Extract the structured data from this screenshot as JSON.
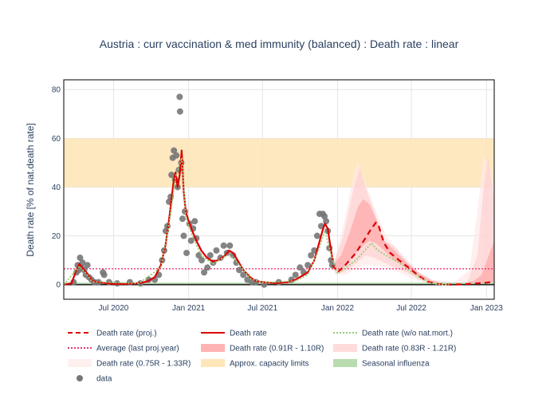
{
  "chart_data": {
    "type": "line",
    "title": "Austria : curr vaccination & med immunity (balanced) : Death rate : linear",
    "xlabel": "",
    "ylabel": "Death rate [% of nat.death rate]",
    "xlim": [
      "2020-03-01",
      "2023-01-20"
    ],
    "ylim": [
      -6,
      84
    ],
    "x_ticks": [
      {
        "date": "2020-07-01",
        "label": "Jul 2020"
      },
      {
        "date": "2021-01-01",
        "label": "Jan 2021"
      },
      {
        "date": "2021-07-01",
        "label": "Jul 2021"
      },
      {
        "date": "2022-01-01",
        "label": "Jan 2022"
      },
      {
        "date": "2022-07-01",
        "label": "Jul 2022"
      },
      {
        "date": "2023-01-01",
        "label": "Jan 2023"
      }
    ],
    "y_ticks": [
      0,
      20,
      40,
      60,
      80
    ],
    "grid": true,
    "legend_position": "bottom",
    "capacity_band": [
      40,
      60
    ],
    "seasonal_influenza": [
      0,
      0.5
    ],
    "average_last_proj_year": 6.5,
    "series": [
      {
        "name": "Death rate",
        "color": "#dd0000",
        "style": "solid",
        "points": [
          [
            "2020-03-01",
            0
          ],
          [
            "2020-03-20",
            0.5
          ],
          [
            "2020-04-01",
            6
          ],
          [
            "2020-04-08",
            8.5
          ],
          [
            "2020-04-15",
            7
          ],
          [
            "2020-04-25",
            5
          ],
          [
            "2020-05-10",
            1.5
          ],
          [
            "2020-06-01",
            0.8
          ],
          [
            "2020-07-01",
            0.3
          ],
          [
            "2020-08-01",
            0.3
          ],
          [
            "2020-09-01",
            0.6
          ],
          [
            "2020-09-20",
            1.2
          ],
          [
            "2020-10-10",
            3
          ],
          [
            "2020-10-25",
            8
          ],
          [
            "2020-11-05",
            16
          ],
          [
            "2020-11-15",
            28
          ],
          [
            "2020-11-25",
            42
          ],
          [
            "2020-11-30",
            46
          ],
          [
            "2020-12-05",
            40
          ],
          [
            "2020-12-10",
            45
          ],
          [
            "2020-12-15",
            55
          ],
          [
            "2020-12-20",
            38
          ],
          [
            "2020-12-25",
            30
          ],
          [
            "2021-01-01",
            26
          ],
          [
            "2021-01-10",
            22
          ],
          [
            "2021-01-20",
            18
          ],
          [
            "2021-02-01",
            14
          ],
          [
            "2021-02-15",
            11
          ],
          [
            "2021-03-01",
            9.5
          ],
          [
            "2021-03-15",
            10
          ],
          [
            "2021-04-01",
            12
          ],
          [
            "2021-04-10",
            14
          ],
          [
            "2021-04-20",
            13
          ],
          [
            "2021-05-01",
            10
          ],
          [
            "2021-05-15",
            6
          ],
          [
            "2021-06-01",
            3
          ],
          [
            "2021-06-15",
            1.5
          ],
          [
            "2021-07-01",
            1
          ],
          [
            "2021-08-01",
            0.6
          ],
          [
            "2021-09-01",
            1
          ],
          [
            "2021-09-20",
            2
          ],
          [
            "2021-10-05",
            3.5
          ],
          [
            "2021-10-20",
            5
          ],
          [
            "2021-11-05",
            10
          ],
          [
            "2021-11-15",
            16
          ],
          [
            "2021-11-25",
            22
          ],
          [
            "2021-12-01",
            25
          ],
          [
            "2021-12-08",
            23
          ],
          [
            "2021-12-15",
            15
          ],
          [
            "2021-12-20",
            10
          ]
        ]
      },
      {
        "name": "Death rate (proj.)",
        "color": "#dd0000",
        "style": "dash",
        "points": [
          [
            "2021-12-20",
            8
          ],
          [
            "2022-01-01",
            5
          ],
          [
            "2022-01-20",
            8
          ],
          [
            "2022-02-15",
            13
          ],
          [
            "2022-03-10",
            19
          ],
          [
            "2022-03-25",
            23
          ],
          [
            "2022-04-05",
            25.5
          ],
          [
            "2022-04-12",
            24
          ],
          [
            "2022-04-25",
            17
          ],
          [
            "2022-05-10",
            13
          ],
          [
            "2022-06-01",
            10
          ],
          [
            "2022-07-01",
            6
          ],
          [
            "2022-07-20",
            3.5
          ],
          [
            "2022-08-10",
            1.2
          ],
          [
            "2022-09-01",
            0.3
          ],
          [
            "2022-10-01",
            0
          ],
          [
            "2022-11-01",
            0.1
          ],
          [
            "2022-12-01",
            0.4
          ],
          [
            "2023-01-01",
            0.8
          ],
          [
            "2023-01-20",
            1.2
          ]
        ]
      },
      {
        "name": "Death rate (w/o nat.mort.)",
        "color": "#99cc77",
        "style": "dot",
        "points": [
          [
            "2020-03-01",
            0
          ],
          [
            "2020-04-08",
            7.5
          ],
          [
            "2020-04-25",
            4.5
          ],
          [
            "2020-05-10",
            1.2
          ],
          [
            "2020-09-01",
            0.5
          ],
          [
            "2020-10-25",
            7
          ],
          [
            "2020-11-15",
            26
          ],
          [
            "2020-11-30",
            44
          ],
          [
            "2020-12-15",
            52
          ],
          [
            "2020-12-25",
            28
          ],
          [
            "2021-01-10",
            20
          ],
          [
            "2021-02-01",
            12
          ],
          [
            "2021-03-01",
            8.5
          ],
          [
            "2021-04-10",
            12.5
          ],
          [
            "2021-05-01",
            9
          ],
          [
            "2021-06-01",
            2.5
          ],
          [
            "2021-07-01",
            0.8
          ],
          [
            "2021-09-20",
            1.5
          ],
          [
            "2021-10-20",
            4
          ],
          [
            "2021-11-15",
            14
          ],
          [
            "2021-12-01",
            22
          ],
          [
            "2021-12-15",
            13
          ],
          [
            "2022-01-01",
            4.5
          ],
          [
            "2022-02-15",
            10
          ],
          [
            "2022-03-25",
            17
          ],
          [
            "2022-04-10",
            14
          ],
          [
            "2022-05-10",
            11
          ],
          [
            "2022-06-01",
            9
          ],
          [
            "2022-07-01",
            5
          ],
          [
            "2022-08-10",
            1
          ],
          [
            "2022-09-01",
            0.2
          ],
          [
            "2022-10-01",
            0
          ]
        ]
      }
    ],
    "bands": [
      {
        "name": "Death rate (0.91R - 1.10R)",
        "color": "#ff9999",
        "opacity": 0.55,
        "points": [
          [
            "2021-12-25",
            6,
            9
          ],
          [
            "2022-01-10",
            6,
            12
          ],
          [
            "2022-02-01",
            10,
            22
          ],
          [
            "2022-02-20",
            14,
            32
          ],
          [
            "2022-03-05",
            16,
            35
          ],
          [
            "2022-03-20",
            18,
            33
          ],
          [
            "2022-04-05",
            17,
            27
          ],
          [
            "2022-04-25",
            14,
            18
          ],
          [
            "2022-05-20",
            10,
            14
          ],
          [
            "2022-06-20",
            7,
            9
          ],
          [
            "2022-07-20",
            3,
            4.5
          ],
          [
            "2022-08-20",
            0.5,
            1.5
          ],
          [
            "2022-09-20",
            0,
            0.5
          ],
          [
            "2022-11-01",
            0,
            0.3
          ],
          [
            "2022-12-01",
            0.2,
            1.5
          ],
          [
            "2022-12-20",
            0.5,
            4
          ],
          [
            "2023-01-20",
            1,
            18
          ]
        ]
      },
      {
        "name": "Death rate (0.83R - 1.21R)",
        "color": "#ffcccc",
        "opacity": 0.6,
        "points": [
          [
            "2021-12-25",
            5,
            10
          ],
          [
            "2022-01-15",
            5,
            20
          ],
          [
            "2022-02-10",
            8,
            40
          ],
          [
            "2022-02-25",
            10,
            48
          ],
          [
            "2022-03-10",
            12,
            40
          ],
          [
            "2022-04-01",
            11,
            30
          ],
          [
            "2022-04-25",
            9,
            18
          ],
          [
            "2022-05-20",
            7,
            16
          ],
          [
            "2022-06-20",
            5,
            10
          ],
          [
            "2022-07-20",
            2,
            5
          ],
          [
            "2022-08-20",
            0.3,
            2
          ],
          [
            "2022-10-01",
            0,
            0.5
          ],
          [
            "2022-11-15",
            0,
            1
          ],
          [
            "2022-12-10",
            0.2,
            12
          ],
          [
            "2022-12-25",
            0.3,
            40
          ],
          [
            "2023-01-05",
            0.5,
            52
          ],
          [
            "2023-01-20",
            1,
            35
          ]
        ]
      },
      {
        "name": "Death rate (0.75R - 1.33R)",
        "color": "#ffe8e8",
        "opacity": 0.7,
        "points": [
          [
            "2021-12-25",
            4,
            10
          ],
          [
            "2022-01-20",
            4,
            28
          ],
          [
            "2022-02-10",
            6,
            46
          ],
          [
            "2022-02-20",
            7,
            50
          ],
          [
            "2022-03-10",
            8,
            42
          ],
          [
            "2022-04-05",
            8,
            30
          ],
          [
            "2022-05-01",
            7,
            20
          ],
          [
            "2022-06-01",
            5,
            12
          ],
          [
            "2022-07-10",
            2,
            6
          ],
          [
            "2022-08-20",
            0.2,
            2
          ],
          [
            "2022-10-15",
            0,
            1
          ],
          [
            "2022-11-20",
            0,
            6
          ],
          [
            "2022-12-10",
            0,
            30
          ],
          [
            "2022-12-25",
            0.2,
            53
          ],
          [
            "2023-01-10",
            0.5,
            48
          ],
          [
            "2023-01-20",
            1,
            40
          ]
        ]
      }
    ],
    "scatter": {
      "name": "data",
      "color": "#777777",
      "points": [
        [
          "2020-03-25",
          1
        ],
        [
          "2020-04-01",
          5
        ],
        [
          "2020-04-04",
          8
        ],
        [
          "2020-04-07",
          6
        ],
        [
          "2020-04-10",
          11
        ],
        [
          "2020-04-13",
          7
        ],
        [
          "2020-04-16",
          9
        ],
        [
          "2020-04-20",
          6
        ],
        [
          "2020-04-24",
          4
        ],
        [
          "2020-04-28",
          8
        ],
        [
          "2020-05-02",
          3
        ],
        [
          "2020-05-08",
          2
        ],
        [
          "2020-05-15",
          1
        ],
        [
          "2020-05-25",
          1
        ],
        [
          "2020-06-05",
          5
        ],
        [
          "2020-06-08",
          4
        ],
        [
          "2020-06-20",
          1
        ],
        [
          "2020-07-10",
          0.5
        ],
        [
          "2020-08-10",
          1
        ],
        [
          "2020-09-05",
          0.5
        ],
        [
          "2020-09-25",
          2
        ],
        [
          "2020-10-10",
          2
        ],
        [
          "2020-10-20",
          4
        ],
        [
          "2020-10-28",
          10
        ],
        [
          "2020-11-02",
          14
        ],
        [
          "2020-11-06",
          22
        ],
        [
          "2020-11-10",
          24
        ],
        [
          "2020-11-14",
          34
        ],
        [
          "2020-11-18",
          36
        ],
        [
          "2020-11-20",
          45
        ],
        [
          "2020-11-23",
          52
        ],
        [
          "2020-11-26",
          55
        ],
        [
          "2020-11-29",
          43
        ],
        [
          "2020-12-02",
          53
        ],
        [
          "2020-12-05",
          40
        ],
        [
          "2020-12-08",
          47
        ],
        [
          "2020-12-10",
          77
        ],
        [
          "2020-12-11",
          71
        ],
        [
          "2020-12-14",
          50
        ],
        [
          "2020-12-17",
          27
        ],
        [
          "2020-12-20",
          20
        ],
        [
          "2020-12-23",
          30
        ],
        [
          "2020-12-27",
          13
        ],
        [
          "2021-01-03",
          25
        ],
        [
          "2021-01-07",
          18
        ],
        [
          "2021-01-12",
          23
        ],
        [
          "2021-01-16",
          26
        ],
        [
          "2021-01-20",
          19
        ],
        [
          "2021-01-26",
          12
        ],
        [
          "2021-02-02",
          10
        ],
        [
          "2021-02-08",
          5
        ],
        [
          "2021-02-16",
          7
        ],
        [
          "2021-02-23",
          12
        ],
        [
          "2021-03-02",
          9
        ],
        [
          "2021-03-10",
          14
        ],
        [
          "2021-03-20",
          11
        ],
        [
          "2021-03-28",
          16
        ],
        [
          "2021-04-05",
          13
        ],
        [
          "2021-04-12",
          16
        ],
        [
          "2021-04-20",
          12
        ],
        [
          "2021-04-28",
          9
        ],
        [
          "2021-05-05",
          6
        ],
        [
          "2021-05-15",
          4
        ],
        [
          "2021-05-25",
          2
        ],
        [
          "2021-06-05",
          1
        ],
        [
          "2021-06-15",
          1
        ],
        [
          "2021-07-05",
          0
        ],
        [
          "2021-08-10",
          1
        ],
        [
          "2021-09-10",
          2
        ],
        [
          "2021-09-20",
          4
        ],
        [
          "2021-10-01",
          7
        ],
        [
          "2021-10-10",
          5
        ],
        [
          "2021-10-20",
          8
        ],
        [
          "2021-10-28",
          12
        ],
        [
          "2021-11-05",
          14
        ],
        [
          "2021-11-12",
          20
        ],
        [
          "2021-11-18",
          29
        ],
        [
          "2021-11-22",
          24
        ],
        [
          "2021-11-26",
          29
        ],
        [
          "2021-11-30",
          28
        ],
        [
          "2021-12-04",
          26
        ],
        [
          "2021-12-08",
          22
        ],
        [
          "2021-12-12",
          15
        ],
        [
          "2021-12-16",
          10
        ],
        [
          "2021-12-19",
          8
        ]
      ]
    }
  },
  "legend": [
    {
      "label": "Death rate (proj.)",
      "kind": "line",
      "color": "#dd0000",
      "dash": "6,4"
    },
    {
      "label": "Death rate",
      "kind": "line",
      "color": "#dd0000",
      "dash": ""
    },
    {
      "label": "Death rate (w/o nat.mort.)",
      "kind": "line",
      "color": "#99cc77",
      "dash": "2,2"
    },
    {
      "label": "Average (last proj.year)",
      "kind": "line",
      "color": "#ee3377",
      "dash": "2,2"
    },
    {
      "label": "Death rate (0.91R - 1.10R)",
      "kind": "rect",
      "color": "#ffb3b3"
    },
    {
      "label": "Death rate (0.83R - 1.21R)",
      "kind": "rect",
      "color": "#ffdcdc"
    },
    {
      "label": "Death rate (0.75R - 1.33R)",
      "kind": "rect",
      "color": "#fff0f0"
    },
    {
      "label": "Approx. capacity limits",
      "kind": "rect",
      "color": "#fde6b8"
    },
    {
      "label": "Seasonal influenza",
      "kind": "rect",
      "color": "#b9dbb0"
    },
    {
      "label": "data",
      "kind": "dot",
      "color": "#777777"
    }
  ]
}
